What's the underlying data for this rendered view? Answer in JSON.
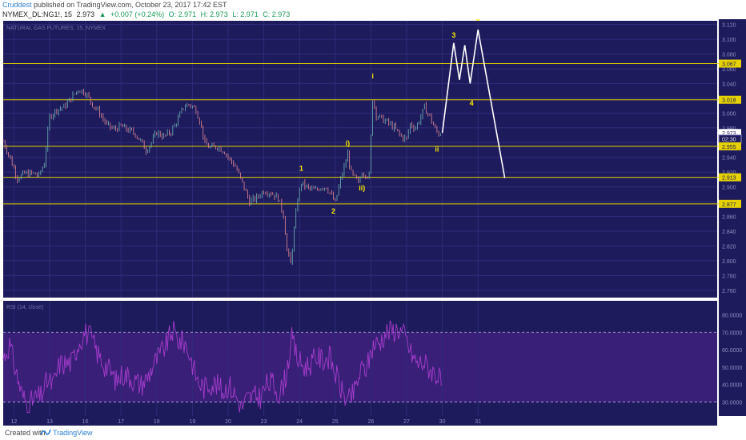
{
  "header": {
    "author": "Cruddest",
    "published": "published on TradingView.com, October 23, 2017 17:42 EST",
    "symbol": "NYMEX_DL:NG1!, 15",
    "last": "2.973",
    "change": "+0.007 (+0.24%)",
    "open": "O: 2.971",
    "high": "H: 2.973",
    "low": "L: 2.971",
    "close": "C: 2.973"
  },
  "footer": {
    "created_with": "Created with",
    "brand": "TradingView"
  },
  "colors": {
    "background": "#1e1b5c",
    "grid": "#2e2b78",
    "level_line": "#e6d200",
    "candle_up": "#6fb7b7",
    "candle_down": "#e38a94",
    "projection": "#ffffff",
    "wave_label": "#f2e600",
    "rsi_line": "#a33cc9",
    "rsi_band": "#3a1f78"
  },
  "chart_data": {
    "type": "candlestick",
    "title": "NATURAL GAS FUTURES, 15, NYMEX",
    "price_axis": {
      "ticks": [
        "3.120",
        "3.100",
        "3.080",
        "3.060",
        "3.040",
        "3.020",
        "3.000",
        "2.980",
        "2.960",
        "2.940",
        "2.920",
        "2.900",
        "2.880",
        "2.860",
        "2.840",
        "2.820",
        "2.800",
        "2.780",
        "2.760"
      ],
      "ylim": [
        2.75,
        3.125
      ]
    },
    "x_axis": {
      "ticks": [
        "12",
        "13",
        "16",
        "17",
        "18",
        "19",
        "20",
        "23",
        "24",
        "25",
        "26",
        "27",
        "30",
        "31"
      ],
      "range": [
        11.7,
        31.7
      ]
    },
    "price_labels": [
      {
        "value": 3.067,
        "text": "3.067",
        "style": "level"
      },
      {
        "value": 3.018,
        "text": "3.018",
        "style": "level"
      },
      {
        "value": 2.973,
        "text": "2.973",
        "style": "last"
      },
      {
        "value": 2.965,
        "text": "02:30",
        "style": "timer"
      },
      {
        "value": 2.955,
        "text": "2.955",
        "style": "level"
      },
      {
        "value": 2.913,
        "text": "2.913",
        "style": "level"
      },
      {
        "value": 2.877,
        "text": "2.877",
        "style": "level"
      }
    ],
    "horizontal_levels": [
      3.067,
      3.018,
      2.955,
      2.913,
      2.877
    ],
    "price_path": [
      [
        11.7,
        2.962
      ],
      [
        11.9,
        2.938
      ],
      [
        12.1,
        2.912
      ],
      [
        12.3,
        2.918
      ],
      [
        12.55,
        2.918
      ],
      [
        12.7,
        2.915
      ],
      [
        12.85,
        2.932
      ],
      [
        13.0,
        2.995
      ],
      [
        13.2,
        3.005
      ],
      [
        13.4,
        3.008
      ],
      [
        13.6,
        3.02
      ],
      [
        13.8,
        3.032
      ],
      [
        14.0,
        3.028
      ],
      [
        14.2,
        3.012
      ],
      [
        14.4,
        3.0
      ],
      [
        14.6,
        2.984
      ],
      [
        14.8,
        2.978
      ],
      [
        15.0,
        2.982
      ],
      [
        15.2,
        2.977
      ],
      [
        15.4,
        2.972
      ],
      [
        15.55,
        2.962
      ],
      [
        15.7,
        2.95
      ],
      [
        15.85,
        2.96
      ],
      [
        16.0,
        2.974
      ],
      [
        16.2,
        2.968
      ],
      [
        16.4,
        2.975
      ],
      [
        16.6,
        2.992
      ],
      [
        16.75,
        3.008
      ],
      [
        16.9,
        3.012
      ],
      [
        17.1,
        3.005
      ],
      [
        17.25,
        2.982
      ],
      [
        17.35,
        2.958
      ],
      [
        17.5,
        2.953
      ],
      [
        17.7,
        2.955
      ],
      [
        17.9,
        2.948
      ],
      [
        18.0,
        2.94
      ],
      [
        18.2,
        2.928
      ],
      [
        18.4,
        2.905
      ],
      [
        18.6,
        2.88
      ],
      [
        18.8,
        2.885
      ],
      [
        19.0,
        2.895
      ],
      [
        19.2,
        2.892
      ],
      [
        19.4,
        2.885
      ],
      [
        19.55,
        2.862
      ],
      [
        19.65,
        2.815
      ],
      [
        19.75,
        2.795
      ],
      [
        19.85,
        2.842
      ],
      [
        19.95,
        2.885
      ],
      [
        20.05,
        2.905
      ],
      [
        20.25,
        2.898
      ],
      [
        20.45,
        2.895
      ],
      [
        20.6,
        2.9
      ],
      [
        20.75,
        2.9
      ],
      [
        20.9,
        2.888
      ],
      [
        21.0,
        2.878
      ],
      [
        21.1,
        2.9
      ],
      [
        21.2,
        2.918
      ],
      [
        21.3,
        2.935
      ],
      [
        21.35,
        2.945
      ],
      [
        21.45,
        2.918
      ],
      [
        21.55,
        2.912
      ],
      [
        21.65,
        2.905
      ],
      [
        21.75,
        2.92
      ],
      [
        21.95,
        2.915
      ],
      [
        22.05,
        3.02
      ],
      [
        22.15,
        2.998
      ],
      [
        22.3,
        2.992
      ],
      [
        22.45,
        2.988
      ],
      [
        22.65,
        2.98
      ],
      [
        22.85,
        2.968
      ],
      [
        23.0,
        2.965
      ],
      [
        23.1,
        2.985
      ],
      [
        23.25,
        2.98
      ],
      [
        23.4,
        2.995
      ],
      [
        23.5,
        3.008
      ],
      [
        23.65,
        2.995
      ],
      [
        23.8,
        2.978
      ],
      [
        23.9,
        2.972
      ],
      [
        24.0,
        2.973
      ]
    ],
    "projection": [
      [
        24.0,
        2.973
      ],
      [
        24.32,
        3.095
      ],
      [
        24.48,
        3.045
      ],
      [
        24.63,
        3.092
      ],
      [
        24.78,
        3.04
      ],
      [
        25.0,
        3.113
      ],
      [
        25.75,
        2.912
      ]
    ],
    "wave_labels": [
      {
        "text": "i",
        "x": 22.05,
        "y": 3.047
      },
      {
        "text": "ii",
        "x": 23.85,
        "y": 2.948
      },
      {
        "text": "3",
        "x": 24.32,
        "y": 3.102
      },
      {
        "text": "4",
        "x": 24.82,
        "y": 3.01
      },
      {
        "text": "5",
        "x": 25.0,
        "y": 3.125
      },
      {
        "text": "i)",
        "x": 21.35,
        "y": 2.956
      },
      {
        "text": "ii)",
        "x": 21.75,
        "y": 2.895
      },
      {
        "text": "1",
        "x": 20.05,
        "y": 2.922
      },
      {
        "text": "2",
        "x": 20.95,
        "y": 2.864
      }
    ],
    "rsi": {
      "title": "RSI (14, close)",
      "ticks": [
        "80.0000",
        "70.0000",
        "60.0000",
        "50.0000",
        "40.0000",
        "30.0000"
      ],
      "ylim": [
        22,
        88
      ],
      "upper_band": 70,
      "lower_band": 30,
      "values": [
        55,
        63,
        48,
        34,
        28,
        32,
        33,
        42,
        40,
        52,
        52,
        53,
        64,
        70,
        67,
        58,
        52,
        48,
        42,
        46,
        45,
        42,
        40,
        44,
        52,
        57,
        63,
        71,
        65,
        64,
        54,
        42,
        38,
        41,
        40,
        36,
        40,
        34,
        27,
        32,
        33,
        33,
        40,
        41,
        34,
        44,
        66,
        54,
        50,
        52,
        56,
        54,
        56,
        46,
        36,
        30,
        36,
        48,
        50,
        63,
        64,
        70,
        71,
        72,
        68,
        58,
        52,
        53,
        49,
        46,
        40
      ]
    },
    "xlabel": "",
    "ylabel": ""
  }
}
